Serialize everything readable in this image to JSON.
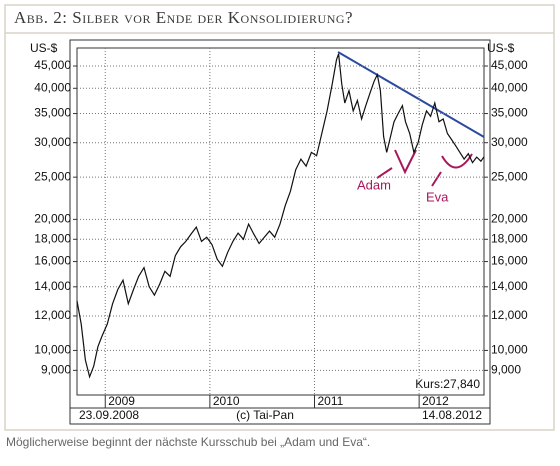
{
  "chart_data": {
    "type": "line",
    "title": "Abb. 2: Silber vor Ende der Konsolidierung?",
    "y_unit": "US-$",
    "log_scale": true,
    "grid": true,
    "x": [
      2008.73,
      2008.77,
      2008.81,
      2008.85,
      2008.89,
      2008.93,
      2008.97,
      2009.02,
      2009.07,
      2009.12,
      2009.17,
      2009.22,
      2009.27,
      2009.32,
      2009.37,
      2009.42,
      2009.47,
      2009.52,
      2009.57,
      2009.62,
      2009.67,
      2009.72,
      2009.77,
      2009.82,
      2009.87,
      2009.92,
      2009.97,
      2010.02,
      2010.07,
      2010.12,
      2010.17,
      2010.22,
      2010.27,
      2010.32,
      2010.37,
      2010.42,
      2010.47,
      2010.52,
      2010.57,
      2010.62,
      2010.67,
      2010.72,
      2010.77,
      2010.82,
      2010.87,
      2010.92,
      2010.97,
      2011.02,
      2011.07,
      2011.12,
      2011.17,
      2011.21,
      2011.23,
      2011.26,
      2011.29,
      2011.33,
      2011.37,
      2011.41,
      2011.45,
      2011.49,
      2011.53,
      2011.57,
      2011.6,
      2011.63,
      2011.66,
      2011.69,
      2011.72,
      2011.76,
      2011.8,
      2011.84,
      2011.87,
      2011.91,
      2011.95,
      2011.99,
      2012.03,
      2012.07,
      2012.11,
      2012.15,
      2012.19,
      2012.23,
      2012.27,
      2012.31,
      2012.35,
      2012.39,
      2012.43,
      2012.47,
      2012.51,
      2012.55,
      2012.59,
      2012.62
    ],
    "values": [
      13000,
      11500,
      9500,
      8700,
      9200,
      10200,
      10800,
      11500,
      12800,
      13800,
      14500,
      12800,
      13800,
      14800,
      15500,
      14000,
      13400,
      14200,
      15200,
      14800,
      16500,
      17300,
      17800,
      18500,
      19200,
      17800,
      18200,
      17500,
      16200,
      15600,
      16800,
      17800,
      18600,
      18000,
      19500,
      18500,
      17600,
      18200,
      18800,
      18200,
      19500,
      21500,
      23200,
      26000,
      27500,
      26500,
      28500,
      28000,
      31500,
      35500,
      41000,
      46500,
      48000,
      41000,
      37000,
      39500,
      35500,
      37500,
      34000,
      36500,
      39000,
      41500,
      43000,
      39500,
      31000,
      28500,
      30500,
      33500,
      35000,
      36500,
      33500,
      31500,
      28500,
      30000,
      33000,
      35500,
      34500,
      37000,
      33500,
      34000,
      31500,
      30500,
      29500,
      28500,
      27500,
      28300,
      27000,
      27800,
      27200,
      27840
    ],
    "color": "#111111",
    "xlim": [
      2008.73,
      2012.62
    ],
    "xticks": [
      2009,
      2010,
      2011,
      2012
    ],
    "ylim": [
      7900,
      49500
    ],
    "yticks": [
      {
        "value": 9000,
        "label": "9,000"
      },
      {
        "value": 10000,
        "label": "10,000"
      },
      {
        "value": 12000,
        "label": "12,000"
      },
      {
        "value": 14000,
        "label": "14,000"
      },
      {
        "value": 16000,
        "label": "16,000"
      },
      {
        "value": 18000,
        "label": "18,000"
      },
      {
        "value": 20000,
        "label": "20,000"
      },
      {
        "value": 25000,
        "label": "25,000"
      },
      {
        "value": 30000,
        "label": "30,000"
      },
      {
        "value": 35000,
        "label": "35,000"
      },
      {
        "value": 40000,
        "label": "40,000"
      },
      {
        "value": 45000,
        "label": "45,000"
      }
    ],
    "start_label": "23.09.2008",
    "end_label": "14.08.2012",
    "copyright": "(c) Tai-Pan",
    "last_price_label": "Kurs:27,840",
    "annotations": [
      "Adam",
      "Eva"
    ],
    "caption": "Möglicherweise beginnt der nächste Kursschub bei „Adam und Eva“."
  }
}
